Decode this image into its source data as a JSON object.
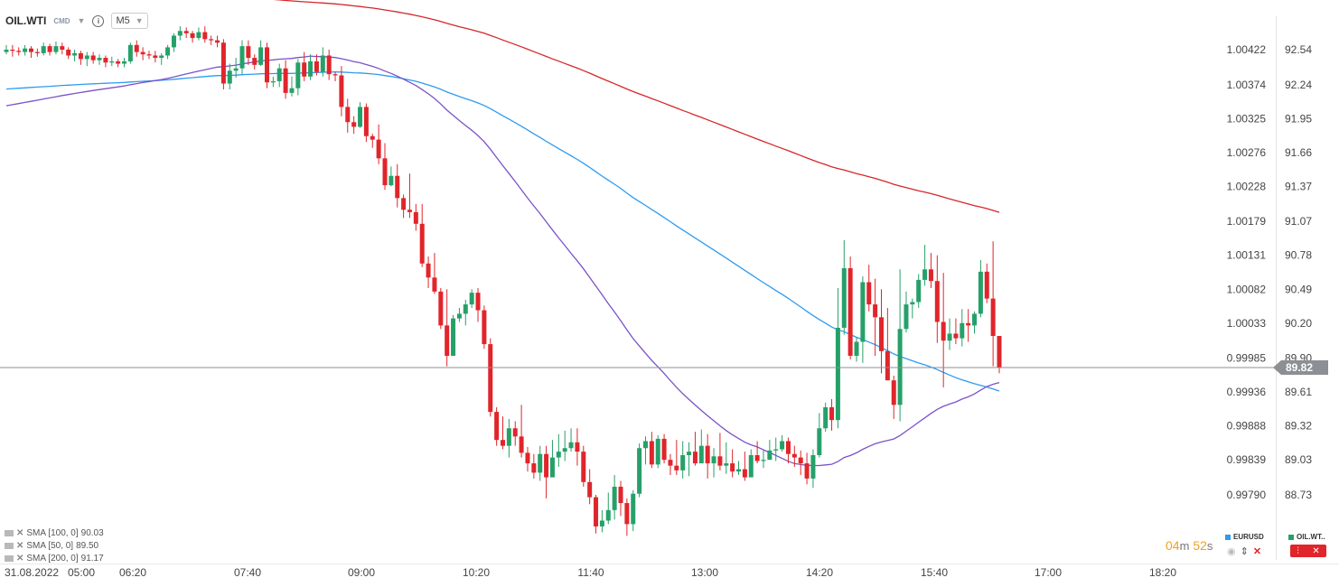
{
  "header": {
    "symbol": "OIL.WTI",
    "market_tag": "CMD",
    "timeframe": "M5"
  },
  "chart_data": {
    "type": "candlestick",
    "ylim": [
      88.45,
      92.8
    ],
    "secondary_ylim": [
      0.99737,
      1.00472
    ],
    "right_axis_ticks": [
      "92.54",
      "92.24",
      "91.95",
      "91.66",
      "91.37",
      "91.07",
      "90.78",
      "90.49",
      "90.20",
      "89.90",
      "89.61",
      "89.32",
      "89.03",
      "88.73"
    ],
    "left_axis_ticks": [
      "1.00422",
      "1.00374",
      "1.00325",
      "1.00276",
      "1.00228",
      "1.00179",
      "1.00131",
      "1.00082",
      "1.00033",
      "0.99985",
      "0.99936",
      "0.99888",
      "0.99839",
      "0.99790"
    ],
    "time_axis": [
      "31.08.2022",
      "05:00",
      "06:20",
      "07:40",
      "09:00",
      "10:20",
      "11:40",
      "13:00",
      "14:20",
      "15:40",
      "17:00",
      "18:20"
    ],
    "last_price": "89.82",
    "candles": [
      [
        92.52,
        92.54,
        92.58,
        92.5
      ],
      [
        92.54,
        92.53,
        92.58,
        92.48
      ],
      [
        92.53,
        92.52,
        92.56,
        92.49
      ],
      [
        92.52,
        92.55,
        92.58,
        92.49
      ],
      [
        92.55,
        92.52,
        92.57,
        92.47
      ],
      [
        92.52,
        92.51,
        92.55,
        92.48
      ],
      [
        92.51,
        92.57,
        92.6,
        92.49
      ],
      [
        92.57,
        92.52,
        92.59,
        92.49
      ],
      [
        92.52,
        92.57,
        92.61,
        92.5
      ],
      [
        92.57,
        92.54,
        92.6,
        92.5
      ],
      [
        92.54,
        92.49,
        92.56,
        92.46
      ],
      [
        92.49,
        92.51,
        92.54,
        92.44
      ],
      [
        92.51,
        92.46,
        92.53,
        92.41
      ],
      [
        92.46,
        92.49,
        92.52,
        92.4
      ],
      [
        92.49,
        92.45,
        92.52,
        92.42
      ],
      [
        92.45,
        92.47,
        92.5,
        92.41
      ],
      [
        92.47,
        92.43,
        92.49,
        92.39
      ],
      [
        92.43,
        92.44,
        92.48,
        92.4
      ],
      [
        92.44,
        92.42,
        92.46,
        92.39
      ],
      [
        92.42,
        92.44,
        92.47,
        92.39
      ],
      [
        92.44,
        92.58,
        92.6,
        92.42
      ],
      [
        92.58,
        92.52,
        92.62,
        92.48
      ],
      [
        92.52,
        92.5,
        92.56,
        92.45
      ],
      [
        92.5,
        92.49,
        92.53,
        92.46
      ],
      [
        92.49,
        92.47,
        92.53,
        92.43
      ],
      [
        92.47,
        92.49,
        92.51,
        92.41
      ],
      [
        92.49,
        92.56,
        92.58,
        92.46
      ],
      [
        92.56,
        92.66,
        92.68,
        92.52
      ],
      [
        92.66,
        92.7,
        92.74,
        92.62
      ],
      [
        92.7,
        92.68,
        92.73,
        92.64
      ],
      [
        92.68,
        92.64,
        92.7,
        92.6
      ],
      [
        92.64,
        92.69,
        92.73,
        92.62
      ],
      [
        92.69,
        92.63,
        92.74,
        92.6
      ],
      [
        92.63,
        92.62,
        92.66,
        92.58
      ],
      [
        92.62,
        92.6,
        92.66,
        92.56
      ],
      [
        92.6,
        92.25,
        92.63,
        92.2
      ],
      [
        92.25,
        92.36,
        92.42,
        92.2
      ],
      [
        92.36,
        92.38,
        92.47,
        92.3
      ],
      [
        92.38,
        92.57,
        92.62,
        92.33
      ],
      [
        92.57,
        92.47,
        92.62,
        92.41
      ],
      [
        92.47,
        92.41,
        92.5,
        92.37
      ],
      [
        92.41,
        92.56,
        92.62,
        92.4
      ],
      [
        92.56,
        92.26,
        92.6,
        92.21
      ],
      [
        92.26,
        92.27,
        92.31,
        92.22
      ],
      [
        92.27,
        92.38,
        92.42,
        92.22
      ],
      [
        92.38,
        92.17,
        92.45,
        92.12
      ],
      [
        92.17,
        92.21,
        92.31,
        92.14
      ],
      [
        92.21,
        92.43,
        92.46,
        92.15
      ],
      [
        92.43,
        92.31,
        92.52,
        92.27
      ],
      [
        92.31,
        92.44,
        92.5,
        92.28
      ],
      [
        92.44,
        92.35,
        92.5,
        92.32
      ],
      [
        92.35,
        92.49,
        92.56,
        92.31
      ],
      [
        92.49,
        92.33,
        92.54,
        92.28
      ],
      [
        92.33,
        92.32,
        92.35,
        92.27
      ],
      [
        92.32,
        92.05,
        92.4,
        91.97
      ],
      [
        92.05,
        91.92,
        92.12,
        91.83
      ],
      [
        91.92,
        91.88,
        91.97,
        91.82
      ],
      [
        91.88,
        92.05,
        92.09,
        91.87
      ],
      [
        92.05,
        91.8,
        92.08,
        91.75
      ],
      [
        91.8,
        91.77,
        91.82,
        91.7
      ],
      [
        91.77,
        91.61,
        91.9,
        91.56
      ],
      [
        91.61,
        91.38,
        91.74,
        91.34
      ],
      [
        91.38,
        91.46,
        91.54,
        91.37
      ],
      [
        91.46,
        91.27,
        91.56,
        91.19
      ],
      [
        91.27,
        91.17,
        91.3,
        91.1
      ],
      [
        91.17,
        91.15,
        91.48,
        91.1
      ],
      [
        91.15,
        91.05,
        91.22,
        90.99
      ],
      [
        91.05,
        90.71,
        91.22,
        90.68
      ],
      [
        90.71,
        90.59,
        90.77,
        90.5
      ],
      [
        90.59,
        90.47,
        90.8,
        90.45
      ],
      [
        90.47,
        90.18,
        90.5,
        90.15
      ],
      [
        90.18,
        89.92,
        90.49,
        89.83
      ],
      [
        89.92,
        90.24,
        90.27,
        90.13
      ],
      [
        90.24,
        90.28,
        90.33,
        90.21
      ],
      [
        90.28,
        90.36,
        90.4,
        90.18
      ],
      [
        90.36,
        90.46,
        90.49,
        90.33
      ],
      [
        90.46,
        90.31,
        90.5,
        90.21
      ],
      [
        90.31,
        90.02,
        90.35,
        89.98
      ],
      [
        90.02,
        89.44,
        90.07,
        89.4
      ],
      [
        89.44,
        89.2,
        89.48,
        89.15
      ],
      [
        89.2,
        89.15,
        89.4,
        89.12
      ],
      [
        89.15,
        89.3,
        89.38,
        89.05
      ],
      [
        89.3,
        89.23,
        89.36,
        89.15
      ],
      [
        89.23,
        89.09,
        89.5,
        89.05
      ],
      [
        89.09,
        89.0,
        89.14,
        88.93
      ],
      [
        89.0,
        88.92,
        89.08,
        88.87
      ],
      [
        88.92,
        89.08,
        89.15,
        88.85
      ],
      [
        89.08,
        88.88,
        89.15,
        88.7
      ],
      [
        88.88,
        89.05,
        89.2,
        88.95
      ],
      [
        89.05,
        89.1,
        89.25,
        88.97
      ],
      [
        89.1,
        89.13,
        89.28,
        89.02
      ],
      [
        89.13,
        89.18,
        89.3,
        89.1
      ],
      [
        89.18,
        89.1,
        89.3,
        88.98
      ],
      [
        89.1,
        88.84,
        89.15,
        88.8
      ],
      [
        88.84,
        88.71,
        88.95,
        88.65
      ],
      [
        88.71,
        88.46,
        88.73,
        88.4
      ],
      [
        88.46,
        88.51,
        88.6,
        88.41
      ],
      [
        88.51,
        88.6,
        88.75,
        88.48
      ],
      [
        88.6,
        88.8,
        88.9,
        88.52
      ],
      [
        88.8,
        88.66,
        88.85,
        88.55
      ],
      [
        88.66,
        88.48,
        88.7,
        88.38
      ],
      [
        88.48,
        88.74,
        88.77,
        88.42
      ],
      [
        88.74,
        89.13,
        89.17,
        88.71
      ],
      [
        89.13,
        89.19,
        89.23,
        88.99
      ],
      [
        89.19,
        88.99,
        89.27,
        88.96
      ],
      [
        88.99,
        89.21,
        89.24,
        88.96
      ],
      [
        89.21,
        89.03,
        89.25,
        89.0
      ],
      [
        89.03,
        88.98,
        89.08,
        88.9
      ],
      [
        88.98,
        88.94,
        89.2,
        88.9
      ],
      [
        88.94,
        89.07,
        89.19,
        88.87
      ],
      [
        89.07,
        89.1,
        89.18,
        88.89
      ],
      [
        89.1,
        89.0,
        89.27,
        88.98
      ],
      [
        89.0,
        89.15,
        89.29,
        89.12
      ],
      [
        89.15,
        89.0,
        89.25,
        88.87
      ],
      [
        89.0,
        89.06,
        89.13,
        88.88
      ],
      [
        89.06,
        88.98,
        89.26,
        88.94
      ],
      [
        88.98,
        89.0,
        89.18,
        88.91
      ],
      [
        89.0,
        88.93,
        89.12,
        88.88
      ],
      [
        88.93,
        88.95,
        89.02,
        88.9
      ],
      [
        88.95,
        88.88,
        89.1,
        88.85
      ],
      [
        88.88,
        89.07,
        89.12,
        88.9
      ],
      [
        89.07,
        89.02,
        89.19,
        89.0
      ],
      [
        89.02,
        89.03,
        89.11,
        88.96
      ],
      [
        89.03,
        89.11,
        89.2,
        89.05
      ],
      [
        89.11,
        89.12,
        89.22,
        89.02
      ],
      [
        89.12,
        89.19,
        89.24,
        89.1
      ],
      [
        89.19,
        89.08,
        89.22,
        89.0
      ],
      [
        89.08,
        89.05,
        89.15,
        88.97
      ],
      [
        89.05,
        89.0,
        89.11,
        88.9
      ],
      [
        89.0,
        88.87,
        89.09,
        88.82
      ],
      [
        88.87,
        89.07,
        89.12,
        88.79
      ],
      [
        89.07,
        89.3,
        89.43,
        89.05
      ],
      [
        89.3,
        89.48,
        89.52,
        89.27
      ],
      [
        89.48,
        89.37,
        89.55,
        89.28
      ],
      [
        89.37,
        90.16,
        90.5,
        89.3
      ],
      [
        90.16,
        90.67,
        90.91,
        90.1
      ],
      [
        90.67,
        89.92,
        90.77,
        89.89
      ],
      [
        89.92,
        90.04,
        90.08,
        89.87
      ],
      [
        90.04,
        90.55,
        90.6,
        89.86
      ],
      [
        90.55,
        90.36,
        90.7,
        90.3
      ],
      [
        90.36,
        90.25,
        90.58,
        89.92
      ],
      [
        90.25,
        89.96,
        90.49,
        89.77
      ],
      [
        89.96,
        89.71,
        90.33,
        89.73
      ],
      [
        89.71,
        89.5,
        89.75,
        89.38
      ],
      [
        89.5,
        90.15,
        90.66,
        89.36
      ],
      [
        90.15,
        90.36,
        90.47,
        90.12
      ],
      [
        90.36,
        90.38,
        90.41,
        90.24
      ],
      [
        90.38,
        90.57,
        90.62,
        90.33
      ],
      [
        90.57,
        90.66,
        90.87,
        90.52
      ],
      [
        90.66,
        90.56,
        90.8,
        90.5
      ],
      [
        90.56,
        90.21,
        90.78,
        90.03
      ],
      [
        90.21,
        90.05,
        90.63,
        89.65
      ],
      [
        90.05,
        90.11,
        90.24,
        89.97
      ],
      [
        90.11,
        90.07,
        90.24,
        90.02
      ],
      [
        90.07,
        90.2,
        90.32,
        90.0
      ],
      [
        90.2,
        90.18,
        90.32,
        90.04
      ],
      [
        90.18,
        90.28,
        90.3,
        90.11
      ],
      [
        90.28,
        90.64,
        90.74,
        90.25
      ],
      [
        90.64,
        90.41,
        90.71,
        90.37
      ],
      [
        90.41,
        90.09,
        90.9,
        89.83
      ],
      [
        90.09,
        89.82,
        89.97,
        89.77
      ]
    ]
  },
  "legend": [
    {
      "label": "SMA [100,  0]",
      "value": "90.03"
    },
    {
      "label": "SMA [50,  0]",
      "value": "89.50"
    },
    {
      "label": "SMA [200,  0]",
      "value": "91.17"
    }
  ],
  "countdown": {
    "minutes": "04",
    "m_unit": "m",
    "seconds": "52",
    "s_unit": "s"
  },
  "compare": {
    "eurusd": "EURUSD",
    "oil": "OIL.WT.."
  },
  "colors": {
    "up": "#26a069",
    "down": "#e0252b",
    "sma100": "#2e9bf0",
    "sma50": "#7b52c9",
    "sma200": "#d6262a",
    "price_tag": "#8c8f94"
  }
}
